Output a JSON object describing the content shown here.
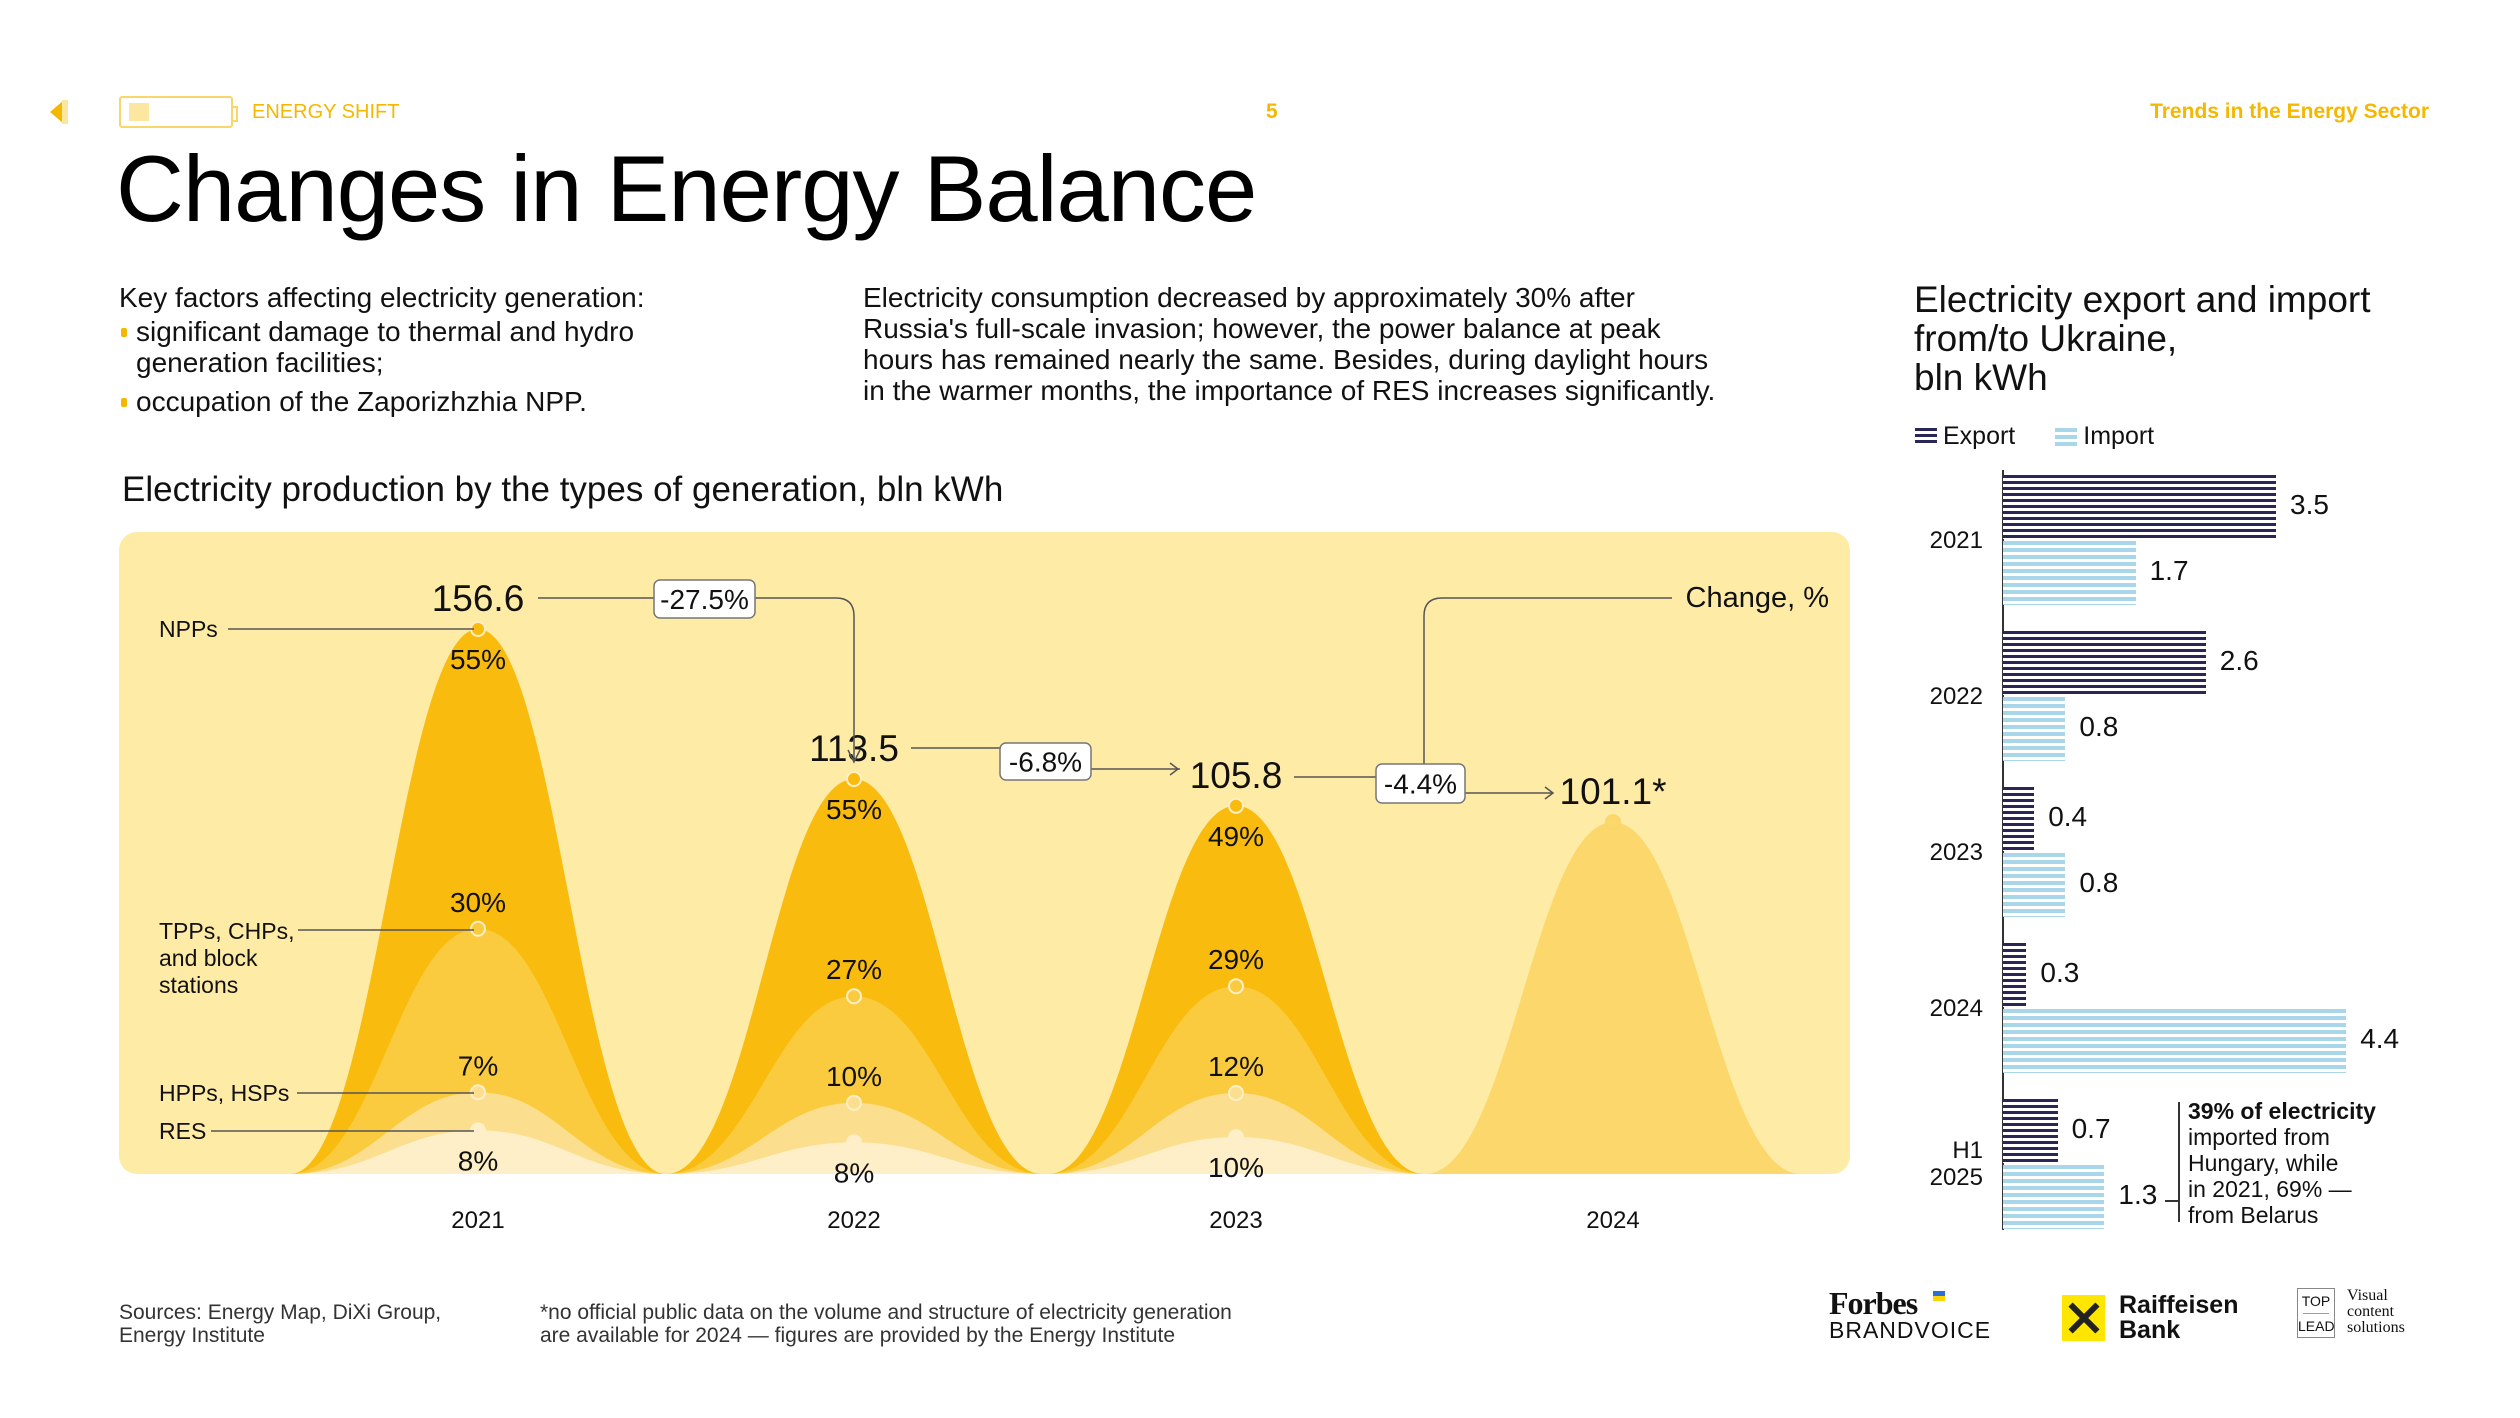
{
  "header": {
    "section": "ENERGY SHIFT",
    "page_number": "5",
    "right_title": "Trends in the Energy Sector",
    "icons": [
      "back-arrow-icon",
      "battery-icon"
    ]
  },
  "title": "Changes in Energy Balance",
  "intro": {
    "heading": "Key factors affecting electricity generation:",
    "bullets": [
      [
        "significant damage to thermal and hydro",
        "generation facilities;"
      ],
      [
        "occupation of the Zaporizhzhia NPP."
      ]
    ],
    "paragraph_lines": [
      "Electricity consumption decreased by approximately 30% after",
      "Russia's full-scale invasion; however, the power balance at peak",
      "hours has remained nearly the same. Besides, during daylight hours",
      "in the warmer months, the importance of RES increases significantly."
    ]
  },
  "chart_data": [
    {
      "type": "area",
      "title": "Electricity production by the types of generation, bln kWh",
      "categories": [
        "2021",
        "2022",
        "2023",
        "2024"
      ],
      "totals": [
        156.6,
        113.5,
        105.8,
        101.1
      ],
      "total_labels": [
        "156.6",
        "113.5",
        "105.8",
        "101.1*"
      ],
      "changes": [
        "-27.5%",
        "-6.8%",
        "-4.4%"
      ],
      "change_label": "Change, %",
      "series": [
        {
          "name": "NPPs",
          "values": [
            55,
            55,
            49,
            null
          ],
          "labels": [
            "55%",
            "55%",
            "49%",
            ""
          ]
        },
        {
          "name": "TPPs, CHPs, and block stations",
          "name_lines": [
            "TPPs, CHPs,",
            "and block",
            "stations"
          ],
          "values": [
            30,
            27,
            29,
            null
          ],
          "labels": [
            "30%",
            "27%",
            "29%",
            ""
          ]
        },
        {
          "name": "HPPs, HSPs",
          "values": [
            7,
            10,
            12,
            null
          ],
          "labels": [
            "7%",
            "10%",
            "12%",
            ""
          ]
        },
        {
          "name": "RES",
          "values": [
            8,
            8,
            10,
            null
          ],
          "labels": [
            "8%",
            "8%",
            "10%",
            ""
          ]
        }
      ],
      "colors": {
        "panel": "#FEEBA6",
        "NPPs": "#F9BC0E",
        "TPPs": "#FBCB3F",
        "HPPs": "#FCDF8E",
        "RES": "#FEEFC8",
        "unknown_2024": "#FCD86C"
      }
    },
    {
      "type": "bar",
      "title": "Electricity export and import from/to Ukraine, bln kWh",
      "title_lines": [
        "Electricity export and import",
        "from/to Ukraine,",
        "bln kWh"
      ],
      "categories": [
        "2021",
        "2022",
        "2023",
        "2024",
        "H1 2025"
      ],
      "category_lines": [
        [
          "2021"
        ],
        [
          "2022"
        ],
        [
          "2023"
        ],
        [
          "2024"
        ],
        [
          "H1",
          "2025"
        ]
      ],
      "series": [
        {
          "name": "Export",
          "values": [
            3.5,
            2.6,
            0.4,
            0.3,
            0.7
          ],
          "labels": [
            "3.5",
            "2.6",
            "0.4",
            "0.3",
            "0.7"
          ],
          "color": "#2A2757"
        },
        {
          "name": "Import",
          "values": [
            1.7,
            0.8,
            0.8,
            4.4,
            1.3
          ],
          "labels": [
            "1.7",
            "0.8",
            "0.8",
            "4.4",
            "1.3"
          ],
          "color": "#A9D6E8"
        }
      ],
      "legend": "top-left",
      "note": {
        "bold": "39% of electricity",
        "lines": [
          "imported from",
          "Hungary, while",
          "in 2021, 69% —",
          "from Belarus"
        ]
      }
    }
  ],
  "footer": {
    "sources": [
      "Sources: Energy Map, DiXi Group,",
      "Energy Institute"
    ],
    "footnote": [
      "*no official public data on the volume and structure of electricity generation",
      "are available for 2024 — figures are provided by the Energy Institute"
    ],
    "logos": {
      "forbes": "Forbes",
      "brandvoice": "BRANDVOICE",
      "raiffeisen": [
        "Raiffeisen",
        "Bank"
      ],
      "toplead": [
        "TOP",
        "LEAD"
      ],
      "toplead_tag": [
        "Visual",
        "content",
        "solutions"
      ]
    }
  }
}
